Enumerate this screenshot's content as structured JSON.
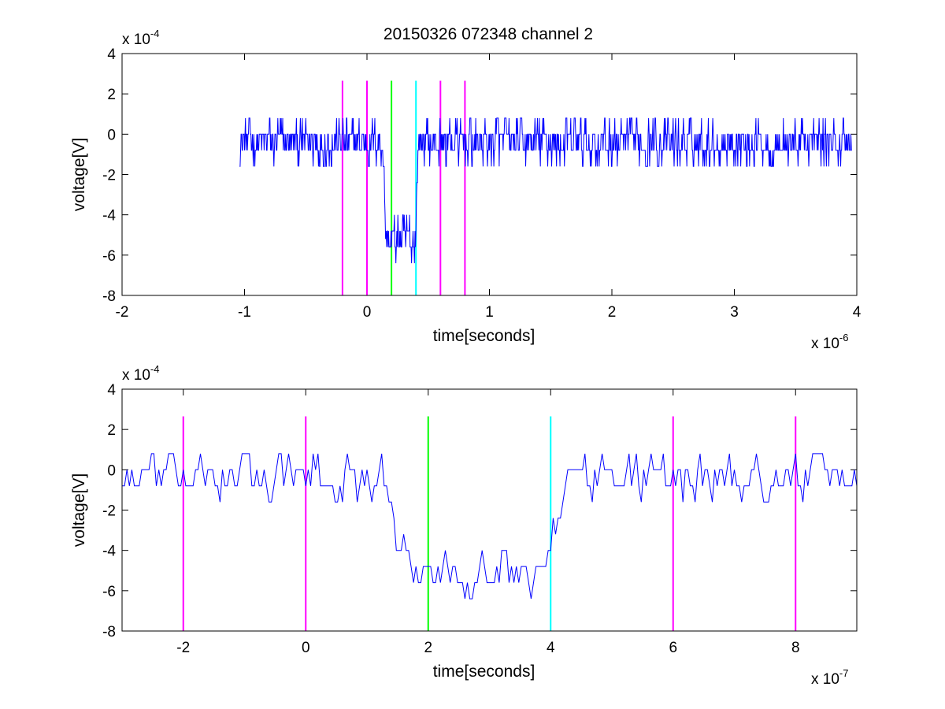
{
  "chart_data": [
    {
      "type": "line",
      "title": "20150326 072348 channel 2",
      "xlabel": "time[seconds]",
      "ylabel": "voltage[V]",
      "x_exponent_label": "x 10^-6",
      "y_exponent_label": "x 10^-4",
      "x_exp_base": "x 10",
      "x_exp_power": "-6",
      "y_exp_base": "x 10",
      "y_exp_power": "-4",
      "xlim": [
        -2,
        4
      ],
      "ylim": [
        -8,
        4
      ],
      "xticks": [
        -2,
        -1,
        0,
        1,
        2,
        3,
        4
      ],
      "yticks": [
        -8,
        -6,
        -4,
        -2,
        0,
        2,
        4
      ],
      "xtick_labels": [
        "-2",
        "-1",
        "0",
        "1",
        "2",
        "3",
        "4"
      ],
      "ytick_labels": [
        "-8",
        "-6",
        "-4",
        "-2",
        "0",
        "2",
        "4"
      ],
      "grid": false,
      "series_color": "#0000ff",
      "signal": {
        "x_start": -1.04,
        "x_end": 3.96,
        "baseline_mean": -0.4,
        "noise_amplitude": 1.3,
        "noise_range": [
          -3.2,
          1.6
        ],
        "dip_start": 0.13,
        "dip_end": 0.42,
        "dip_level": -5.2,
        "dip_noise_range": [
          -7.2,
          -3.2
        ]
      },
      "vlines": [
        {
          "x": -0.2,
          "color": "#ff00ff"
        },
        {
          "x": 0.0,
          "color": "#ff00ff"
        },
        {
          "x": 0.2,
          "color": "#00ff00"
        },
        {
          "x": 0.4,
          "color": "#00ffff"
        },
        {
          "x": 0.6,
          "color": "#ff00ff"
        },
        {
          "x": 0.8,
          "color": "#ff00ff"
        }
      ],
      "vline_ymin": -8,
      "vline_ymax": 2.65
    },
    {
      "type": "line",
      "title": "",
      "xlabel": "time[seconds]",
      "ylabel": "voltage[V]",
      "x_exponent_label": "x 10^-7",
      "y_exponent_label": "x 10^-4",
      "x_exp_base": "x 10",
      "x_exp_power": "-7",
      "y_exp_base": "x 10",
      "y_exp_power": "-4",
      "xlim": [
        -3,
        9
      ],
      "ylim": [
        -8,
        4
      ],
      "xticks": [
        -2,
        0,
        2,
        4,
        6,
        8
      ],
      "yticks": [
        -8,
        -6,
        -4,
        -2,
        0,
        2,
        4
      ],
      "xtick_labels": [
        "-2",
        "0",
        "2",
        "4",
        "6",
        "8"
      ],
      "ytick_labels": [
        "-8",
        "-6",
        "-4",
        "-2",
        "0",
        "2",
        "4"
      ],
      "grid": false,
      "series_color": "#0000ff",
      "signal": {
        "x_start": -3,
        "x_end": 9,
        "baseline_mean": -0.4,
        "noise_amplitude": 1.3,
        "noise_range": [
          -3.2,
          2.4
        ],
        "dip_start": 1.3,
        "dip_end": 4.2,
        "dip_level": -5.0,
        "dip_noise_range": [
          -7.2,
          -3.2
        ]
      },
      "vlines": [
        {
          "x": -2,
          "color": "#ff00ff"
        },
        {
          "x": 0,
          "color": "#ff00ff"
        },
        {
          "x": 2,
          "color": "#00ff00"
        },
        {
          "x": 4,
          "color": "#00ffff"
        },
        {
          "x": 6,
          "color": "#ff00ff"
        },
        {
          "x": 8,
          "color": "#ff00ff"
        }
      ],
      "vline_ymin": -8,
      "vline_ymax": 2.65
    }
  ]
}
